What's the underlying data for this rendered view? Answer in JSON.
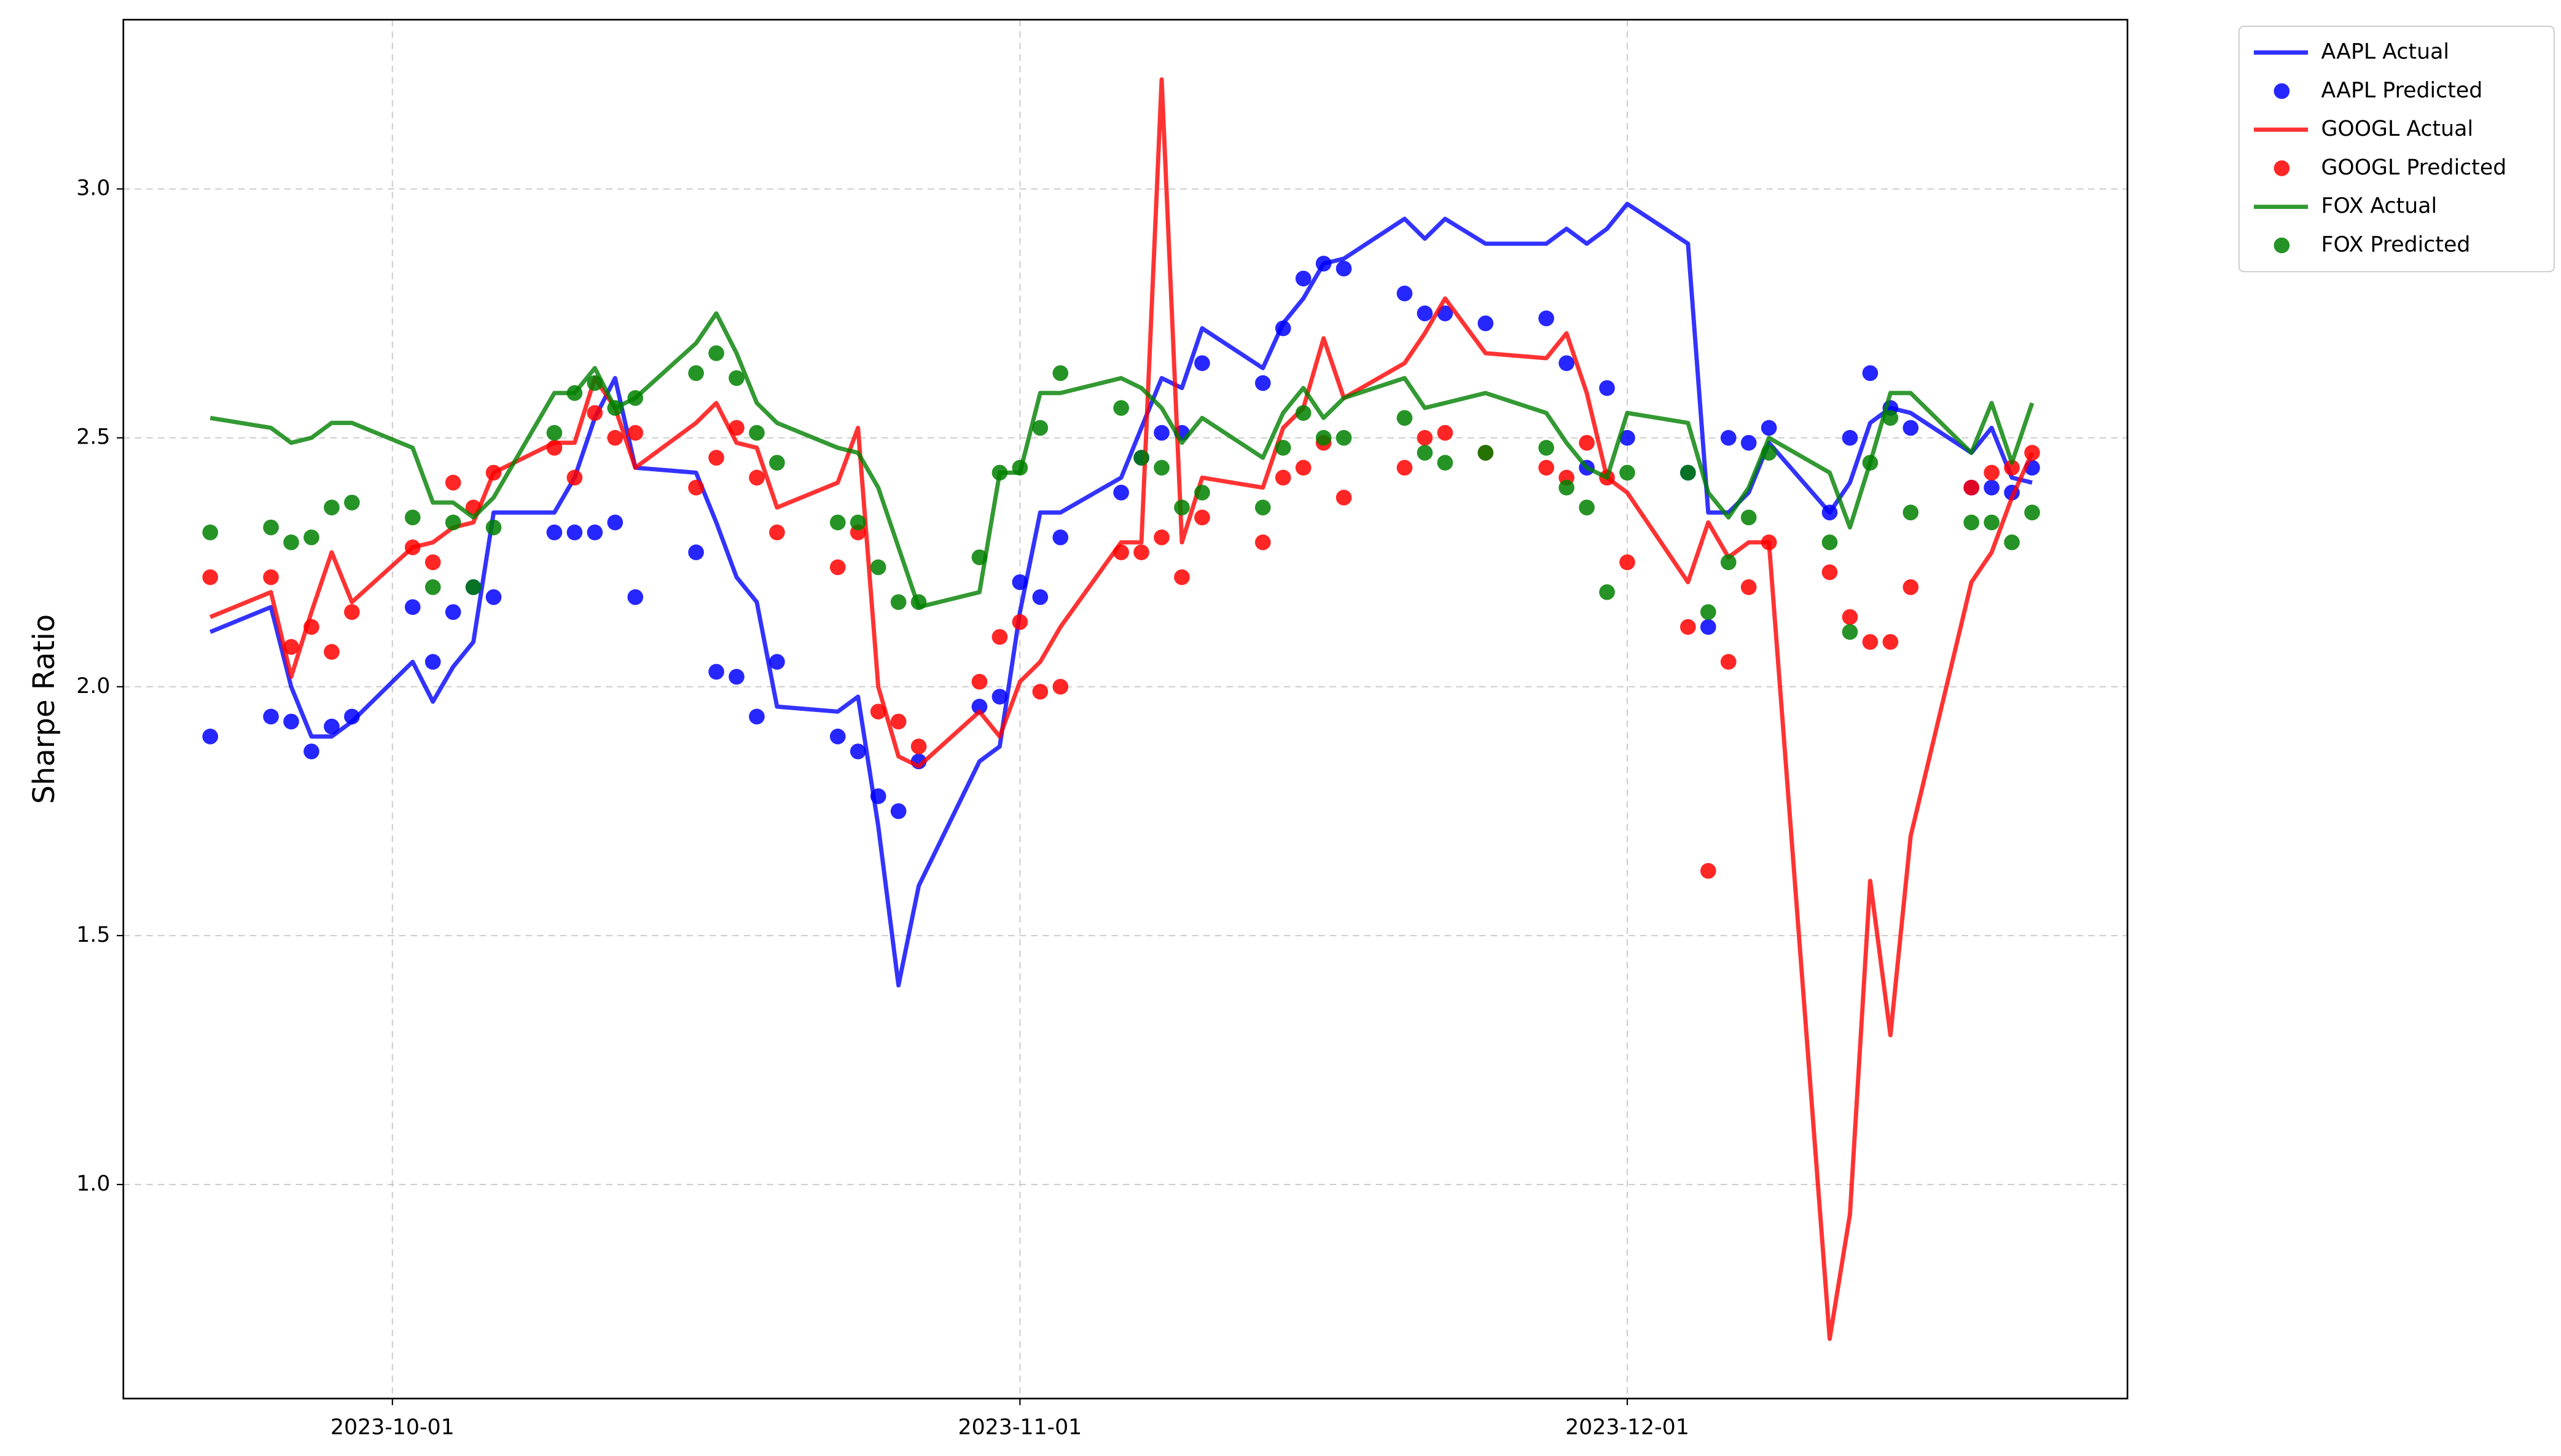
{
  "chart_data": {
    "type": "line",
    "ylabel": "Sharpe Ratio",
    "x": [
      "2023-09-22",
      "2023-09-25",
      "2023-09-26",
      "2023-09-27",
      "2023-09-28",
      "2023-09-29",
      "2023-10-02",
      "2023-10-03",
      "2023-10-04",
      "2023-10-05",
      "2023-10-06",
      "2023-10-09",
      "2023-10-10",
      "2023-10-11",
      "2023-10-12",
      "2023-10-13",
      "2023-10-16",
      "2023-10-17",
      "2023-10-18",
      "2023-10-19",
      "2023-10-20",
      "2023-10-23",
      "2023-10-24",
      "2023-10-25",
      "2023-10-26",
      "2023-10-27",
      "2023-10-30",
      "2023-10-31",
      "2023-11-01",
      "2023-11-02",
      "2023-11-03",
      "2023-11-06",
      "2023-11-07",
      "2023-11-08",
      "2023-11-09",
      "2023-11-10",
      "2023-11-13",
      "2023-11-14",
      "2023-11-15",
      "2023-11-16",
      "2023-11-17",
      "2023-11-20",
      "2023-11-21",
      "2023-11-22",
      "2023-11-24",
      "2023-11-27",
      "2023-11-28",
      "2023-11-29",
      "2023-11-30",
      "2023-12-01",
      "2023-12-04",
      "2023-12-05",
      "2023-12-06",
      "2023-12-07",
      "2023-12-08",
      "2023-12-11",
      "2023-12-12",
      "2023-12-13",
      "2023-12-14",
      "2023-12-15",
      "2023-12-18",
      "2023-12-19",
      "2023-12-20",
      "2023-12-21"
    ],
    "series": [
      {
        "name": "AAPL Actual",
        "type": "line",
        "color": "#0000ff",
        "values": [
          2.11,
          2.16,
          2.0,
          1.9,
          1.9,
          1.93,
          2.05,
          1.97,
          2.04,
          2.09,
          2.35,
          2.35,
          2.42,
          2.54,
          2.62,
          2.44,
          2.43,
          2.33,
          2.22,
          2.17,
          1.96,
          1.95,
          1.98,
          1.72,
          1.4,
          1.6,
          1.85,
          1.88,
          2.15,
          2.35,
          2.35,
          2.42,
          2.52,
          2.62,
          2.6,
          2.72,
          2.64,
          2.73,
          2.78,
          2.85,
          2.86,
          2.94,
          2.9,
          2.94,
          2.89,
          2.89,
          2.92,
          2.89,
          2.92,
          2.97,
          2.89,
          2.35,
          2.35,
          2.39,
          2.49,
          2.35,
          2.41,
          2.53,
          2.56,
          2.55,
          2.47,
          2.52,
          2.42,
          2.41
        ]
      },
      {
        "name": "AAPL Predicted",
        "type": "scatter",
        "color": "#0000ff",
        "values": [
          1.9,
          1.94,
          1.93,
          1.87,
          1.92,
          1.94,
          2.16,
          2.05,
          2.15,
          2.2,
          2.18,
          2.31,
          2.31,
          2.31,
          2.33,
          2.18,
          2.27,
          2.03,
          2.02,
          1.94,
          2.05,
          1.9,
          1.87,
          1.78,
          1.75,
          1.85,
          1.96,
          1.98,
          2.21,
          2.18,
          2.3,
          2.39,
          2.46,
          2.51,
          2.51,
          2.65,
          2.61,
          2.72,
          2.82,
          2.85,
          2.84,
          2.79,
          2.75,
          2.75,
          2.73,
          2.74,
          2.65,
          2.44,
          2.6,
          2.5,
          2.43,
          2.12,
          2.5,
          2.49,
          2.52,
          2.35,
          2.5,
          2.63,
          2.56,
          2.52,
          2.4,
          2.4,
          2.39,
          2.44
        ]
      },
      {
        "name": "GOOGL Actual",
        "type": "line",
        "color": "#ff0000",
        "values": [
          2.14,
          2.19,
          2.02,
          2.15,
          2.27,
          2.17,
          2.28,
          2.29,
          2.32,
          2.33,
          2.43,
          2.49,
          2.49,
          2.62,
          2.56,
          2.44,
          2.53,
          2.57,
          2.49,
          2.48,
          2.36,
          2.41,
          2.52,
          2.0,
          1.86,
          1.84,
          1.95,
          1.9,
          2.01,
          2.05,
          2.12,
          2.29,
          2.29,
          3.22,
          2.29,
          2.42,
          2.4,
          2.52,
          2.56,
          2.7,
          2.58,
          2.65,
          2.71,
          2.78,
          2.67,
          2.66,
          2.71,
          2.59,
          2.42,
          2.39,
          2.21,
          2.33,
          2.26,
          2.29,
          2.29,
          0.69,
          0.94,
          1.61,
          1.3,
          1.7,
          2.21,
          2.27,
          2.38,
          2.47
        ]
      },
      {
        "name": "GOOGL Predicted",
        "type": "scatter",
        "color": "#ff0000",
        "values": [
          2.22,
          2.22,
          2.08,
          2.12,
          2.07,
          2.15,
          2.28,
          2.25,
          2.41,
          2.36,
          2.43,
          2.48,
          2.42,
          2.55,
          2.5,
          2.51,
          2.4,
          2.46,
          2.52,
          2.42,
          2.31,
          2.24,
          2.31,
          1.95,
          1.93,
          1.88,
          2.01,
          2.1,
          2.13,
          1.99,
          2.0,
          2.27,
          2.27,
          2.3,
          2.22,
          2.34,
          2.29,
          2.42,
          2.44,
          2.49,
          2.38,
          2.44,
          2.5,
          2.51,
          2.47,
          2.44,
          2.42,
          2.49,
          2.42,
          2.25,
          2.12,
          1.63,
          2.05,
          2.2,
          2.29,
          2.23,
          2.14,
          2.09,
          2.09,
          2.2,
          2.4,
          2.43,
          2.44,
          2.47
        ]
      },
      {
        "name": "FOX Actual",
        "type": "line",
        "color": "#008000",
        "values": [
          2.54,
          2.52,
          2.49,
          2.5,
          2.53,
          2.53,
          2.48,
          2.37,
          2.37,
          2.34,
          2.38,
          2.59,
          2.59,
          2.64,
          2.56,
          2.58,
          2.69,
          2.75,
          2.67,
          2.57,
          2.53,
          2.48,
          2.47,
          2.4,
          2.28,
          2.16,
          2.19,
          2.43,
          2.43,
          2.59,
          2.59,
          2.62,
          2.6,
          2.56,
          2.49,
          2.54,
          2.46,
          2.55,
          2.6,
          2.54,
          2.58,
          2.62,
          2.56,
          2.57,
          2.59,
          2.55,
          2.49,
          2.44,
          2.42,
          2.55,
          2.53,
          2.39,
          2.34,
          2.4,
          2.5,
          2.43,
          2.32,
          2.45,
          2.59,
          2.59,
          2.47,
          2.57,
          2.45,
          2.57
        ]
      },
      {
        "name": "FOX Predicted",
        "type": "scatter",
        "color": "#008000",
        "values": [
          2.31,
          2.32,
          2.29,
          2.3,
          2.36,
          2.37,
          2.34,
          2.2,
          2.33,
          2.2,
          2.32,
          2.51,
          2.59,
          2.61,
          2.56,
          2.58,
          2.63,
          2.67,
          2.62,
          2.51,
          2.45,
          2.33,
          2.33,
          2.24,
          2.17,
          2.17,
          2.26,
          2.43,
          2.44,
          2.52,
          2.63,
          2.56,
          2.46,
          2.44,
          2.36,
          2.39,
          2.36,
          2.48,
          2.55,
          2.5,
          2.5,
          2.54,
          2.47,
          2.45,
          2.47,
          2.48,
          2.4,
          2.36,
          2.19,
          2.43,
          2.43,
          2.15,
          2.25,
          2.34,
          2.47,
          2.29,
          2.11,
          2.45,
          2.54,
          2.35,
          2.33,
          2.33,
          2.29,
          2.35
        ]
      }
    ],
    "xlim": [
      "2023-09-17T17:00",
      "2023-12-25T17:00"
    ],
    "xticks": [
      "2023-10-01",
      "2023-11-01",
      "2023-12-01"
    ],
    "ylim": [
      0.57,
      3.34
    ],
    "yticks": [
      {
        "value": 1,
        "label": "1.0"
      },
      1.5,
      {
        "value": 2,
        "label": "2.0"
      },
      2.5,
      {
        "value": 3,
        "label": "3.0"
      }
    ],
    "grid": true,
    "legend": "outside upper right"
  }
}
